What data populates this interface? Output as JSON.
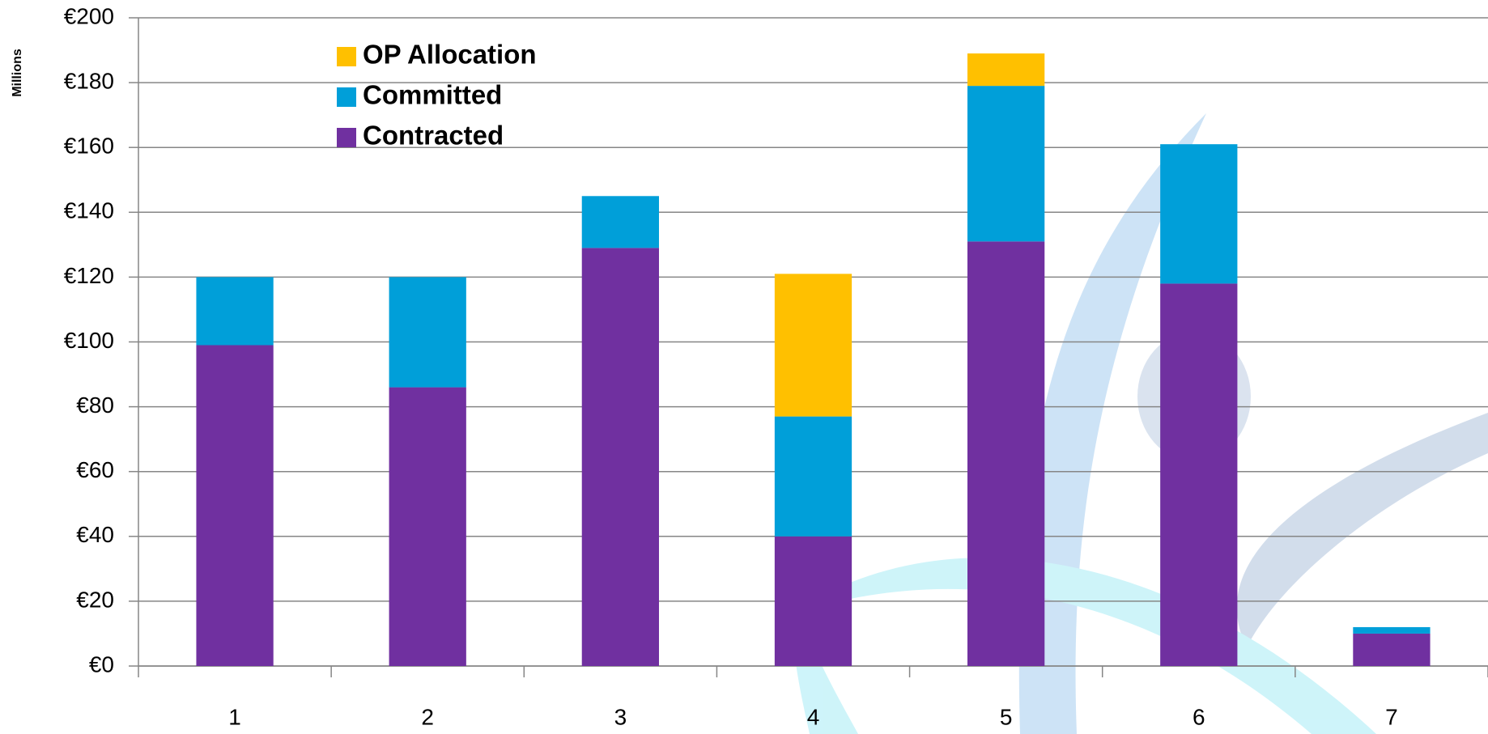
{
  "chart_data": {
    "type": "stacked_bar",
    "y_axis_label": "Millions",
    "categories": [
      "1",
      "2",
      "3",
      "4",
      "5",
      "6",
      "7"
    ],
    "series": [
      {
        "name": "Contracted",
        "color": "#7030a0",
        "values": [
          99,
          86,
          129,
          40,
          131,
          118,
          10
        ]
      },
      {
        "name": "Committed",
        "color": "#009fd9",
        "values": [
          21,
          34,
          16,
          37,
          48,
          43,
          2
        ]
      },
      {
        "name": "OP Allocation",
        "color": "#ffc000",
        "values": [
          null,
          null,
          null,
          44,
          10,
          null,
          null
        ]
      }
    ],
    "ylim": [
      0,
      200
    ],
    "yticks": [
      {
        "value": 0,
        "label": "€0"
      },
      {
        "value": 20,
        "label": "€20"
      },
      {
        "value": 40,
        "label": "€40"
      },
      {
        "value": 60,
        "label": "€60"
      },
      {
        "value": 80,
        "label": "€80"
      },
      {
        "value": 100,
        "label": "€100"
      },
      {
        "value": 120,
        "label": "€120"
      },
      {
        "value": 140,
        "label": "€140"
      },
      {
        "value": 160,
        "label": "€160"
      },
      {
        "value": 180,
        "label": "€180"
      },
      {
        "value": 200,
        "label": "€200"
      }
    ],
    "grid": true,
    "legend": "upper left"
  }
}
